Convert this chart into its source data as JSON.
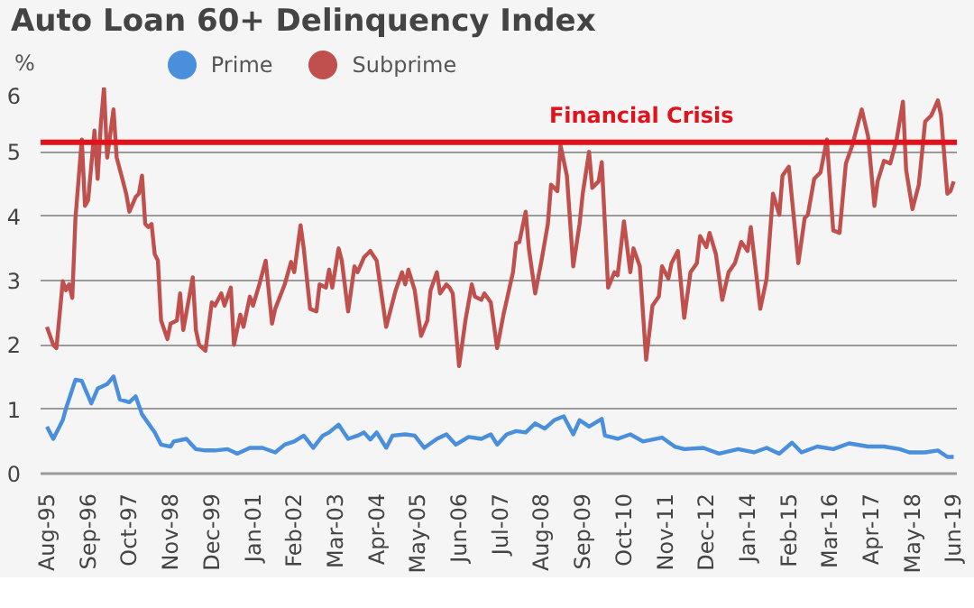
{
  "chart_data": {
    "type": "line",
    "title": "Auto Loan 60+ Delinquency Index",
    "ylabel": "%",
    "xlim": [
      "1995-06",
      "2019-07"
    ],
    "ylim": [
      0,
      6
    ],
    "yticks": [
      0,
      1,
      2,
      3,
      4,
      5,
      6
    ],
    "xticks": [
      {
        "value": "1995-08",
        "label": "Aug-95"
      },
      {
        "value": "1996-09",
        "label": "Sep-96"
      },
      {
        "value": "1997-10",
        "label": "Oct-97"
      },
      {
        "value": "1998-11",
        "label": "Nov-98"
      },
      {
        "value": "1999-12",
        "label": "Dec-99"
      },
      {
        "value": "2001-01",
        "label": "Jan-01"
      },
      {
        "value": "2002-02",
        "label": "Feb-02"
      },
      {
        "value": "2003-03",
        "label": "Mar-03"
      },
      {
        "value": "2004-04",
        "label": "Apr-04"
      },
      {
        "value": "2005-05",
        "label": "May-05"
      },
      {
        "value": "2006-06",
        "label": "Jun-06"
      },
      {
        "value": "2007-07",
        "label": "Jul-07"
      },
      {
        "value": "2008-08",
        "label": "Aug-08"
      },
      {
        "value": "2009-09",
        "label": "Sep-09"
      },
      {
        "value": "2010-10",
        "label": "Oct-10"
      },
      {
        "value": "2011-11",
        "label": "Nov-11"
      },
      {
        "value": "2012-12",
        "label": "Dec-12"
      },
      {
        "value": "2014-01",
        "label": "Jan-14"
      },
      {
        "value": "2015-02",
        "label": "Feb-15"
      },
      {
        "value": "2016-03",
        "label": "Mar-16"
      },
      {
        "value": "2017-04",
        "label": "Apr-17"
      },
      {
        "value": "2018-05",
        "label": "May-18"
      },
      {
        "value": "2019-06",
        "label": "Jun-19"
      }
    ],
    "grid": "y",
    "legend": "top",
    "ref_lines": [
      {
        "axis": "y",
        "value": 5.15,
        "label": "Financial Crisis",
        "color": "#e0121b"
      }
    ],
    "series": [
      {
        "name": "Prime",
        "color": "#4a8fdc",
        "x": [
          "1995-08",
          "1995-10",
          "1996-01",
          "1996-02",
          "1996-05",
          "1996-07",
          "1996-10",
          "1996-12",
          "1997-03",
          "1997-05",
          "1997-07",
          "1997-10",
          "1997-12",
          "1998-02",
          "1998-06",
          "1998-08",
          "1998-11",
          "1998-12",
          "1999-04",
          "1999-07",
          "1999-10",
          "2000-01",
          "2000-05",
          "2000-08",
          "2000-12",
          "2001-04",
          "2001-08",
          "2001-11",
          "2002-02",
          "2002-05",
          "2002-08",
          "2002-11",
          "2003-01",
          "2003-04",
          "2003-07",
          "2003-10",
          "2003-12",
          "2004-02",
          "2004-04",
          "2004-07",
          "2004-09",
          "2005-01",
          "2005-04",
          "2005-07",
          "2005-11",
          "2006-02",
          "2006-05",
          "2006-09",
          "2007-01",
          "2007-04",
          "2007-06",
          "2007-09",
          "2007-12",
          "2008-03",
          "2008-06",
          "2008-09",
          "2008-12",
          "2009-03",
          "2009-06",
          "2009-08",
          "2009-11",
          "2010-03",
          "2010-04",
          "2010-08",
          "2010-12",
          "2011-04",
          "2011-10",
          "2012-02",
          "2012-05",
          "2012-11",
          "2013-04",
          "2013-10",
          "2014-03",
          "2014-07",
          "2014-11",
          "2015-03",
          "2015-06",
          "2015-11",
          "2016-04",
          "2016-09",
          "2017-03",
          "2017-08",
          "2018-01",
          "2018-04",
          "2018-09",
          "2019-01",
          "2019-04",
          "2019-06"
        ],
        "values": [
          0.73,
          0.54,
          0.83,
          1.01,
          1.46,
          1.44,
          1.09,
          1.32,
          1.39,
          1.51,
          1.15,
          1.11,
          1.2,
          0.92,
          0.64,
          0.45,
          0.42,
          0.5,
          0.54,
          0.38,
          0.36,
          0.36,
          0.38,
          0.31,
          0.4,
          0.4,
          0.33,
          0.45,
          0.5,
          0.59,
          0.4,
          0.59,
          0.64,
          0.76,
          0.54,
          0.59,
          0.64,
          0.53,
          0.64,
          0.4,
          0.59,
          0.61,
          0.59,
          0.4,
          0.54,
          0.61,
          0.45,
          0.57,
          0.54,
          0.61,
          0.45,
          0.61,
          0.66,
          0.64,
          0.78,
          0.7,
          0.83,
          0.89,
          0.61,
          0.83,
          0.73,
          0.85,
          0.59,
          0.54,
          0.61,
          0.5,
          0.56,
          0.42,
          0.38,
          0.4,
          0.31,
          0.38,
          0.33,
          0.4,
          0.31,
          0.48,
          0.33,
          0.42,
          0.38,
          0.47,
          0.42,
          0.42,
          0.38,
          0.33,
          0.33,
          0.36,
          0.26,
          0.26
        ]
      },
      {
        "name": "Subprime",
        "color": "#c0504d",
        "x": [
          "1995-08",
          "1995-10",
          "1995-11",
          "1996-01",
          "1996-02",
          "1996-03",
          "1996-04",
          "1996-05",
          "1996-07",
          "1996-08",
          "1996-09",
          "1996-11",
          "1996-12",
          "1997-01",
          "1997-02",
          "1997-03",
          "1997-05",
          "1997-06",
          "1997-08",
          "1997-09",
          "1997-10",
          "1997-12",
          "1998-01",
          "1998-02",
          "1998-03",
          "1998-04",
          "1998-05",
          "1998-06",
          "1998-07",
          "1998-08",
          "1998-10",
          "1998-11",
          "1999-01",
          "1999-02",
          "1999-03",
          "1999-06",
          "1999-07",
          "1999-08",
          "1999-10",
          "1999-12",
          "2000-01",
          "2000-03",
          "2000-04",
          "2000-06",
          "2000-07",
          "2000-09",
          "2000-10",
          "2000-12",
          "2001-01",
          "2001-03",
          "2001-05",
          "2001-07",
          "2001-08",
          "2001-11",
          "2002-01",
          "2002-02",
          "2002-04",
          "2002-05",
          "2002-07",
          "2002-09",
          "2002-10",
          "2002-12",
          "2003-01",
          "2003-02",
          "2003-04",
          "2003-05",
          "2003-07",
          "2003-09",
          "2003-10",
          "2003-12",
          "2004-01",
          "2004-02",
          "2004-04",
          "2004-07",
          "2004-09",
          "2004-10",
          "2004-12",
          "2005-01",
          "2005-02",
          "2005-04",
          "2005-06",
          "2005-08",
          "2005-09",
          "2005-11",
          "2005-12",
          "2006-02",
          "2006-03",
          "2006-04",
          "2006-06",
          "2006-08",
          "2006-10",
          "2006-11",
          "2007-01",
          "2007-02",
          "2007-04",
          "2007-06",
          "2007-08",
          "2007-11",
          "2007-12",
          "2008-01",
          "2008-03",
          "2008-04",
          "2008-06",
          "2008-08",
          "2008-10",
          "2008-11",
          "2009-01",
          "2009-02",
          "2009-04",
          "2009-06",
          "2009-08",
          "2009-09",
          "2009-11",
          "2009-12",
          "2010-02",
          "2010-03",
          "2010-05",
          "2010-07",
          "2010-08",
          "2010-10",
          "2010-12",
          "2011-01",
          "2011-03",
          "2011-05",
          "2011-07",
          "2011-09",
          "2011-10",
          "2011-12",
          "2012-01",
          "2012-03",
          "2012-05",
          "2012-07",
          "2012-09",
          "2012-10",
          "2012-12",
          "2013-01",
          "2013-03",
          "2013-05",
          "2013-07",
          "2013-09",
          "2013-11",
          "2014-01",
          "2014-02",
          "2014-05",
          "2014-07",
          "2014-09",
          "2014-11",
          "2014-12",
          "2015-02",
          "2015-05",
          "2015-07",
          "2015-08",
          "2015-10",
          "2015-12",
          "2016-02",
          "2016-04",
          "2016-06",
          "2016-08",
          "2016-10",
          "2017-01",
          "2017-03",
          "2017-05",
          "2017-06",
          "2017-08",
          "2017-10",
          "2017-12",
          "2018-02",
          "2018-03",
          "2018-05",
          "2018-07",
          "2018-09",
          "2018-11",
          "2019-01",
          "2019-02",
          "2019-04",
          "2019-05",
          "2019-06"
        ],
        "values": [
          2.28,
          2.0,
          1.95,
          2.99,
          2.85,
          2.94,
          2.73,
          3.97,
          5.19,
          4.16,
          4.25,
          5.33,
          4.58,
          5.43,
          6.0,
          4.91,
          5.66,
          4.91,
          4.54,
          4.35,
          4.07,
          4.3,
          4.35,
          4.63,
          3.88,
          3.83,
          3.88,
          3.41,
          3.31,
          2.38,
          2.09,
          2.33,
          2.38,
          2.8,
          2.23,
          3.05,
          2.23,
          2.0,
          1.91,
          2.66,
          2.61,
          2.8,
          2.61,
          2.89,
          2.0,
          2.47,
          2.28,
          2.75,
          2.61,
          2.94,
          3.31,
          2.33,
          2.56,
          2.94,
          3.29,
          3.13,
          3.86,
          3.5,
          2.56,
          2.52,
          2.94,
          2.89,
          3.17,
          2.89,
          3.5,
          3.31,
          2.52,
          3.22,
          3.13,
          3.36,
          3.41,
          3.46,
          3.31,
          2.28,
          2.66,
          2.85,
          3.13,
          2.94,
          3.17,
          2.85,
          2.14,
          2.38,
          2.85,
          3.13,
          2.8,
          2.94,
          2.89,
          2.8,
          1.67,
          2.38,
          2.94,
          2.75,
          2.7,
          2.8,
          2.66,
          1.95,
          2.47,
          3.13,
          3.58,
          3.6,
          4.07,
          3.5,
          2.8,
          3.31,
          3.88,
          4.49,
          4.39,
          5.1,
          4.63,
          3.22,
          3.88,
          4.35,
          5.0,
          4.44,
          4.54,
          4.84,
          2.89,
          3.13,
          3.08,
          3.92,
          3.13,
          3.5,
          3.22,
          1.77,
          2.61,
          2.75,
          3.22,
          3.03,
          3.27,
          3.46,
          2.42,
          3.13,
          3.27,
          3.69,
          3.52,
          3.74,
          3.41,
          2.7,
          3.13,
          3.27,
          3.6,
          3.46,
          3.83,
          2.56,
          3.03,
          4.35,
          4.02,
          4.63,
          4.77,
          3.27,
          3.97,
          4.02,
          4.58,
          4.68,
          5.19,
          3.78,
          3.74,
          4.82,
          5.1,
          5.66,
          5.24,
          4.16,
          4.54,
          4.86,
          4.82,
          5.19,
          5.78,
          4.72,
          4.11,
          4.49,
          5.47,
          5.57,
          5.8,
          5.57,
          4.35,
          4.39,
          4.54
        ]
      }
    ]
  }
}
